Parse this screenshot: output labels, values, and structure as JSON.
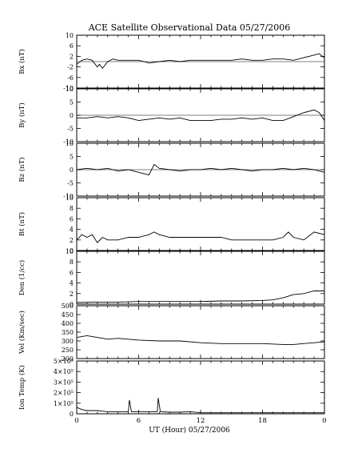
{
  "chart_data": {
    "type": "line",
    "title": "ACE Satellite Observational Data   05/27/2006",
    "xlabel": "UT (Hour)   05/27/2006",
    "x_ticks": [
      "0",
      "6",
      "12",
      "18",
      "0"
    ],
    "xlim": [
      0,
      24
    ],
    "panels": [
      {
        "ylabel": "Bx (nT)",
        "ylim": [
          -10,
          10
        ],
        "y_ticks": [
          -10,
          -6,
          -2,
          2,
          6,
          10
        ],
        "y_tick_labels": [
          "-10",
          "-6",
          "-2",
          "2",
          "6",
          "10"
        ],
        "zero_line": true,
        "x": [
          0,
          0.5,
          1,
          1.5,
          2,
          2.2,
          2.5,
          3,
          3.5,
          4,
          5,
          6,
          7,
          8,
          9,
          10,
          11,
          12,
          13,
          14,
          15,
          16,
          17,
          18,
          19,
          20,
          21,
          22,
          23,
          23.5,
          23.8,
          24
        ],
        "y": [
          -1,
          0.5,
          1,
          0.5,
          -2,
          -1,
          -2.5,
          0,
          1,
          0.5,
          0.5,
          0.5,
          -0.5,
          0,
          0.5,
          0,
          0.5,
          0.5,
          0.5,
          0.5,
          0.5,
          1,
          0.5,
          0.5,
          1,
          1,
          0.5,
          1.5,
          2.5,
          3,
          2,
          1.5
        ]
      },
      {
        "ylabel": "By (nT)",
        "ylim": [
          -10,
          10
        ],
        "y_ticks": [
          -10,
          -5,
          0,
          5,
          10
        ],
        "y_tick_labels": [
          "-10",
          "-5",
          "0",
          "5",
          "10"
        ],
        "zero_line": true,
        "x": [
          0,
          1,
          2,
          3,
          4,
          5,
          6,
          7,
          8,
          9,
          10,
          11,
          12,
          13,
          14,
          15,
          16,
          17,
          18,
          19,
          20,
          21,
          22,
          23,
          23.5,
          24
        ],
        "y": [
          -1,
          -1,
          -0.5,
          -1,
          -0.5,
          -1,
          -2,
          -1.5,
          -1,
          -1.5,
          -1,
          -2,
          -2,
          -2,
          -1.5,
          -1.5,
          -1,
          -1.5,
          -1,
          -2,
          -2,
          -0.5,
          1,
          2,
          1,
          -2
        ]
      },
      {
        "ylabel": "Bz (nT)",
        "ylim": [
          -10,
          10
        ],
        "y_ticks": [
          -10,
          -5,
          0,
          5,
          10
        ],
        "y_tick_labels": [
          "-10",
          "-5",
          "0",
          "5",
          "10"
        ],
        "zero_line": true,
        "x": [
          0,
          1,
          2,
          3,
          4,
          5,
          6,
          7,
          7.5,
          8,
          9,
          10,
          11,
          12,
          13,
          14,
          15,
          16,
          17,
          18,
          19,
          20,
          21,
          22,
          23,
          24
        ],
        "y": [
          0,
          0.5,
          0,
          0.5,
          -0.5,
          0,
          -1,
          -2,
          2,
          0.5,
          0,
          -0.5,
          0,
          0,
          0.5,
          0,
          0.5,
          0,
          -0.5,
          0,
          0,
          0.5,
          0,
          0.5,
          0,
          -1
        ]
      },
      {
        "ylabel": "Bt (nT)",
        "ylim": [
          0,
          10
        ],
        "y_ticks": [
          0,
          2,
          4,
          6,
          8,
          10
        ],
        "y_tick_labels": [
          "0",
          "2",
          "4",
          "6",
          "8",
          "10"
        ],
        "zero_line": false,
        "x": [
          0,
          0.5,
          1,
          1.5,
          2,
          2.5,
          3,
          4,
          5,
          6,
          7,
          7.5,
          8,
          9,
          10,
          11,
          12,
          13,
          14,
          15,
          16,
          17,
          18,
          19,
          20,
          20.5,
          21,
          22,
          23,
          24
        ],
        "y": [
          2,
          3,
          2.5,
          3,
          1.5,
          2.5,
          2,
          2,
          2.5,
          2.5,
          3,
          3.5,
          3,
          2.5,
          2.5,
          2.5,
          2.5,
          2.5,
          2.5,
          2,
          2,
          2,
          2,
          2,
          2.5,
          3.5,
          2.5,
          2,
          3.5,
          3
        ]
      },
      {
        "ylabel": "Den (1/cc)",
        "ylim": [
          0,
          10
        ],
        "y_ticks": [
          0,
          2,
          4,
          6,
          8,
          10
        ],
        "y_tick_labels": [
          "0",
          "2",
          "4",
          "6",
          "8",
          "10"
        ],
        "zero_line": false,
        "x": [
          0,
          2,
          4,
          6,
          8,
          10,
          12,
          14,
          16,
          18,
          19,
          20,
          21,
          22,
          23,
          24
        ],
        "y": [
          0.3,
          0.4,
          0.4,
          0.5,
          0.5,
          0.5,
          0.5,
          0.6,
          0.6,
          0.7,
          0.8,
          1.2,
          1.8,
          2,
          2.5,
          2.5
        ]
      },
      {
        "ylabel": "Vel (Km/sec)",
        "ylim": [
          200,
          500
        ],
        "y_ticks": [
          200,
          250,
          300,
          350,
          400,
          450,
          500
        ],
        "y_tick_labels": [
          "200",
          "250",
          "300",
          "350",
          "400",
          "450",
          "500"
        ],
        "zero_line": false,
        "x": [
          0,
          1,
          2,
          3,
          4,
          5,
          6,
          8,
          10,
          12,
          14,
          16,
          18,
          20,
          21,
          22,
          23,
          24
        ],
        "y": [
          320,
          330,
          320,
          310,
          315,
          310,
          305,
          300,
          300,
          290,
          285,
          285,
          285,
          280,
          280,
          285,
          290,
          295
        ]
      },
      {
        "ylabel": "Ion Temp (K)",
        "ylim": [
          0,
          500000
        ],
        "y_ticks": [
          0,
          100000,
          200000,
          300000,
          400000,
          500000
        ],
        "y_tick_labels": [
          "0",
          "1×10⁵",
          "2×10⁵",
          "3×10⁵",
          "4×10⁵",
          "5×10⁵"
        ],
        "zero_line": false,
        "x": [
          0,
          0.5,
          1,
          2,
          3,
          4,
          5,
          5.1,
          5.3,
          6,
          7,
          7.8,
          7.9,
          8.1,
          9,
          10,
          11,
          12,
          14,
          16,
          18,
          20,
          22,
          24
        ],
        "y": [
          60000,
          40000,
          30000,
          30000,
          20000,
          20000,
          20000,
          130000,
          20000,
          20000,
          20000,
          20000,
          150000,
          20000,
          15000,
          15000,
          20000,
          10000,
          10000,
          10000,
          10000,
          10000,
          10000,
          10000
        ]
      }
    ]
  }
}
